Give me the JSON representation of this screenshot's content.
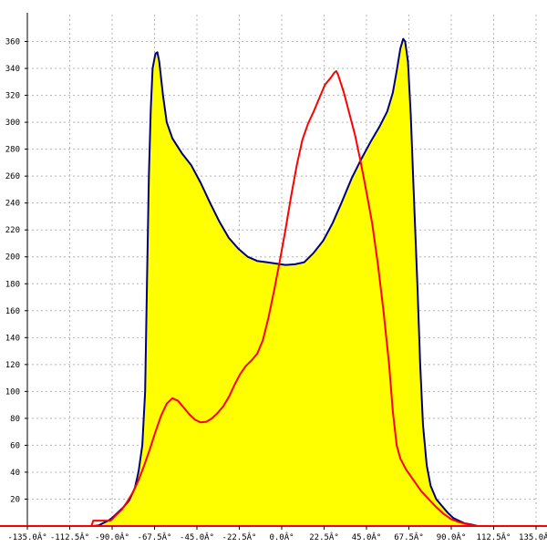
{
  "chart_data": {
    "type": "area",
    "title": "",
    "xlabel": "",
    "ylabel": "",
    "xlim": [
      -135,
      135
    ],
    "ylim": [
      0,
      380
    ],
    "grid": true,
    "legend": "none",
    "x_ticks": [
      {
        "value": -135,
        "label": "-135.0Â°"
      },
      {
        "value": -112.5,
        "label": "-112.5Â°"
      },
      {
        "value": -90,
        "label": "-90.0Â°"
      },
      {
        "value": -67.5,
        "label": "-67.5Â°"
      },
      {
        "value": -45,
        "label": "-45.0Â°"
      },
      {
        "value": -22.5,
        "label": "-22.5Â°"
      },
      {
        "value": 0,
        "label": "0.0Â°"
      },
      {
        "value": 22.5,
        "label": "22.5Â°"
      },
      {
        "value": 45,
        "label": "45.0Â°"
      },
      {
        "value": 67.5,
        "label": "67.5Â°"
      },
      {
        "value": 90,
        "label": "90.0Â°"
      },
      {
        "value": 112.5,
        "label": "112.5Â°"
      },
      {
        "value": 135,
        "label": "135.0Â°"
      }
    ],
    "y_ticks": [
      {
        "value": 20,
        "label": "20"
      },
      {
        "value": 40,
        "label": "40"
      },
      {
        "value": 60,
        "label": "60"
      },
      {
        "value": 80,
        "label": "80"
      },
      {
        "value": 100,
        "label": "100"
      },
      {
        "value": 120,
        "label": "120"
      },
      {
        "value": 140,
        "label": "140"
      },
      {
        "value": 160,
        "label": "160"
      },
      {
        "value": 180,
        "label": "180"
      },
      {
        "value": 200,
        "label": "200"
      },
      {
        "value": 220,
        "label": "220"
      },
      {
        "value": 240,
        "label": "240"
      },
      {
        "value": 260,
        "label": "260"
      },
      {
        "value": 280,
        "label": "280"
      },
      {
        "value": 300,
        "label": "300"
      },
      {
        "value": 320,
        "label": "320"
      },
      {
        "value": 340,
        "label": "340"
      },
      {
        "value": 360,
        "label": "360"
      }
    ],
    "series": [
      {
        "color": "#000080",
        "fill": "#ffff00",
        "points": [
          [
            -135,
            0
          ],
          [
            -100,
            0
          ],
          [
            -97,
            0.5
          ],
          [
            -95,
            2
          ],
          [
            -92,
            4
          ],
          [
            -90,
            6
          ],
          [
            -87,
            10
          ],
          [
            -84,
            14
          ],
          [
            -81,
            19
          ],
          [
            -78,
            28
          ],
          [
            -76,
            40
          ],
          [
            -74,
            60
          ],
          [
            -72.5,
            100
          ],
          [
            -71.5,
            180
          ],
          [
            -70.5,
            260
          ],
          [
            -69.5,
            310
          ],
          [
            -68.5,
            340
          ],
          [
            -67,
            351
          ],
          [
            -66,
            352
          ],
          [
            -65,
            345
          ],
          [
            -63,
            320
          ],
          [
            -61,
            300
          ],
          [
            -58,
            288
          ],
          [
            -53,
            277
          ],
          [
            -48,
            268
          ],
          [
            -43,
            255
          ],
          [
            -38,
            240
          ],
          [
            -33,
            226
          ],
          [
            -28,
            214
          ],
          [
            -23,
            206
          ],
          [
            -18,
            200
          ],
          [
            -13,
            197
          ],
          [
            -8,
            196
          ],
          [
            -3,
            195
          ],
          [
            2,
            194
          ],
          [
            7,
            194.5
          ],
          [
            12,
            196
          ],
          [
            17,
            203
          ],
          [
            22,
            212
          ],
          [
            27,
            225
          ],
          [
            32,
            241
          ],
          [
            37,
            258
          ],
          [
            42,
            272
          ],
          [
            47,
            285
          ],
          [
            52,
            297
          ],
          [
            56,
            308
          ],
          [
            59,
            322
          ],
          [
            61,
            338
          ],
          [
            63,
            355
          ],
          [
            64.5,
            362
          ],
          [
            65.5,
            360
          ],
          [
            67,
            345
          ],
          [
            68.5,
            305
          ],
          [
            70,
            250
          ],
          [
            72,
            180
          ],
          [
            73.5,
            120
          ],
          [
            75,
            75
          ],
          [
            77,
            45
          ],
          [
            79,
            30
          ],
          [
            82,
            20
          ],
          [
            85,
            15
          ],
          [
            88,
            10
          ],
          [
            91,
            6
          ],
          [
            94,
            4
          ],
          [
            97,
            2
          ],
          [
            101,
            1
          ],
          [
            104,
            0
          ],
          [
            135,
            0
          ]
        ]
      },
      {
        "color": "#ff0000",
        "fill": "none",
        "points": [
          [
            -135,
            0
          ],
          [
            -101,
            0
          ],
          [
            -100,
            4
          ],
          [
            -91,
            4
          ],
          [
            -90,
            5
          ],
          [
            -88,
            8
          ],
          [
            -85,
            12
          ],
          [
            -82,
            18
          ],
          [
            -79,
            25
          ],
          [
            -76,
            34
          ],
          [
            -73,
            45
          ],
          [
            -70,
            57
          ],
          [
            -67,
            70
          ],
          [
            -64,
            82
          ],
          [
            -61,
            91
          ],
          [
            -58,
            95
          ],
          [
            -55,
            93
          ],
          [
            -52,
            88
          ],
          [
            -49,
            83
          ],
          [
            -46,
            79
          ],
          [
            -43,
            77
          ],
          [
            -40,
            77.5
          ],
          [
            -37,
            80
          ],
          [
            -34,
            84
          ],
          [
            -31,
            89
          ],
          [
            -28,
            96
          ],
          [
            -25,
            105
          ],
          [
            -22,
            113
          ],
          [
            -19,
            119
          ],
          [
            -16,
            123
          ],
          [
            -13,
            128
          ],
          [
            -10,
            138
          ],
          [
            -7,
            155
          ],
          [
            -4,
            175
          ],
          [
            -1,
            197
          ],
          [
            2,
            220
          ],
          [
            5,
            245
          ],
          [
            8,
            268
          ],
          [
            11,
            287
          ],
          [
            14,
            299
          ],
          [
            17,
            308
          ],
          [
            20,
            318
          ],
          [
            23,
            328
          ],
          [
            26,
            333
          ],
          [
            28,
            337
          ],
          [
            29,
            338
          ],
          [
            30,
            335
          ],
          [
            33,
            322
          ],
          [
            36,
            306
          ],
          [
            39,
            290
          ],
          [
            42,
            270
          ],
          [
            45,
            248
          ],
          [
            48,
            225
          ],
          [
            51,
            195
          ],
          [
            54,
            160
          ],
          [
            57,
            120
          ],
          [
            59,
            85
          ],
          [
            61,
            60
          ],
          [
            63,
            50
          ],
          [
            66,
            42
          ],
          [
            70,
            34
          ],
          [
            74,
            26
          ],
          [
            78,
            20
          ],
          [
            82,
            14
          ],
          [
            86,
            9
          ],
          [
            90,
            5
          ],
          [
            94,
            3
          ],
          [
            98,
            1.5
          ],
          [
            102,
            0.5
          ],
          [
            104,
            0
          ],
          [
            135,
            0
          ]
        ]
      }
    ]
  }
}
